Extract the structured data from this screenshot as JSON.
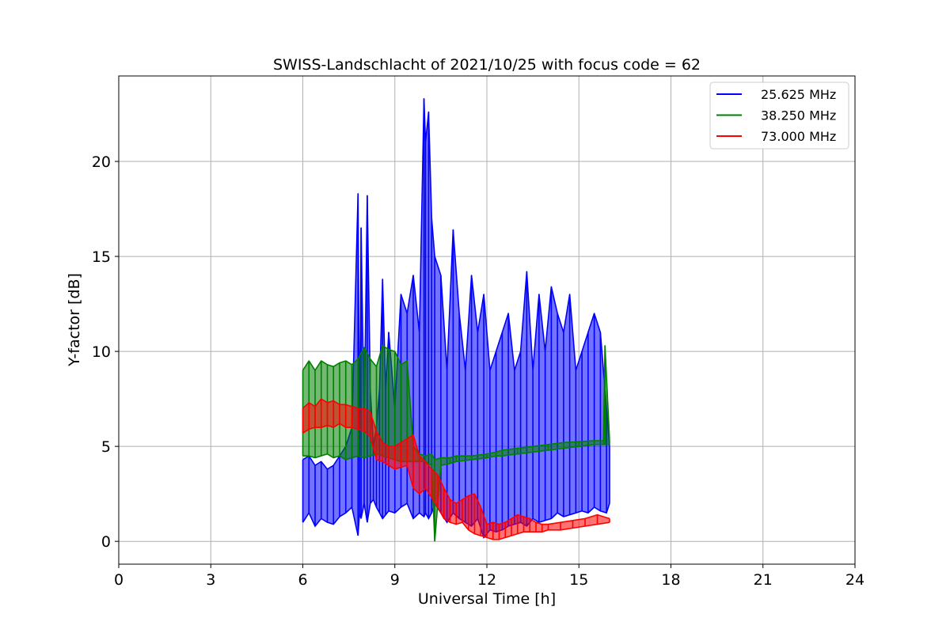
{
  "chart_data": {
    "type": "line",
    "title": "SWISS-Landschlacht of 2021/10/25 with focus code = 62",
    "xlabel": "Universal Time [h]",
    "ylabel": "Y-factor [dB]",
    "xlim": [
      0,
      24
    ],
    "ylim": [
      -1.2,
      24.5
    ],
    "xticks": [
      0,
      3,
      6,
      9,
      12,
      15,
      18,
      21,
      24
    ],
    "yticks": [
      0,
      5,
      10,
      15,
      20
    ],
    "grid": true,
    "legend_position": "top-right",
    "series": [
      {
        "name": "25.625 MHz",
        "color": "#0000ff",
        "x": [
          6.0,
          6.2,
          6.4,
          6.6,
          6.8,
          7.0,
          7.2,
          7.4,
          7.6,
          7.8,
          7.85,
          7.9,
          8.0,
          8.1,
          8.2,
          8.3,
          8.4,
          8.5,
          8.6,
          8.7,
          8.8,
          9.0,
          9.2,
          9.4,
          9.6,
          9.8,
          9.95,
          10.0,
          10.1,
          10.2,
          10.3,
          10.5,
          10.7,
          10.9,
          11.1,
          11.3,
          11.5,
          11.7,
          11.9,
          12.1,
          12.3,
          12.5,
          12.7,
          12.9,
          13.1,
          13.3,
          13.5,
          13.7,
          13.9,
          14.1,
          14.3,
          14.5,
          14.7,
          14.9,
          15.1,
          15.3,
          15.5,
          15.7,
          15.9,
          16.0
        ],
        "y": [
          4.3,
          4.5,
          4.0,
          4.2,
          3.8,
          4.0,
          4.5,
          5.0,
          6.0,
          18.3,
          4.0,
          16.5,
          6.0,
          18.2,
          8.0,
          5.0,
          6.0,
          8.0,
          13.8,
          8.0,
          11.0,
          7.0,
          13.0,
          12.0,
          14.0,
          11.0,
          23.3,
          21.0,
          22.6,
          17.0,
          15.0,
          14.0,
          9.0,
          16.4,
          12.0,
          9.0,
          14.0,
          11.0,
          13.0,
          9.0,
          10.0,
          11.0,
          12.0,
          9.0,
          10.0,
          14.2,
          9.0,
          13.0,
          10.0,
          13.4,
          12.0,
          11.0,
          13.0,
          9.0,
          10.0,
          11.0,
          12.0,
          11.0,
          7.0,
          5.0
        ],
        "band_low": [
          1.0,
          1.5,
          0.8,
          1.2,
          1.0,
          0.9,
          1.3,
          1.5,
          1.8,
          0.3,
          1.5,
          1.2,
          2.0,
          1.0,
          2.0,
          2.2,
          1.8,
          1.5,
          1.2,
          1.4,
          1.6,
          1.5,
          1.8,
          2.0,
          1.2,
          1.5,
          1.3,
          1.5,
          1.2,
          1.5,
          2.0,
          1.5,
          1.0,
          1.5,
          1.2,
          1.0,
          0.8,
          1.2,
          0.2,
          0.6,
          0.5,
          0.6,
          0.8,
          0.9,
          1.0,
          0.8,
          1.2,
          1.0,
          1.1,
          1.2,
          1.5,
          1.3,
          1.4,
          1.5,
          1.6,
          1.5,
          1.8,
          1.6,
          1.5,
          2.0
        ]
      },
      {
        "name": "38.250 MHz",
        "color": "#008000",
        "x": [
          6.0,
          6.2,
          6.4,
          6.6,
          6.8,
          7.0,
          7.2,
          7.4,
          7.6,
          7.8,
          8.0,
          8.2,
          8.4,
          8.6,
          8.8,
          9.0,
          9.2,
          9.4,
          9.6,
          9.8,
          10.0,
          10.2,
          10.3,
          10.5,
          10.8,
          11.0,
          11.5,
          12.0,
          12.3,
          12.5,
          13.0,
          13.5,
          14.0,
          14.5,
          15.0,
          15.5,
          15.8,
          15.85,
          16.0
        ],
        "y": [
          9.0,
          9.5,
          9.0,
          9.5,
          9.3,
          9.2,
          9.4,
          9.5,
          9.3,
          9.6,
          10.2,
          9.6,
          9.2,
          10.3,
          10.1,
          10.0,
          9.3,
          9.5,
          5.0,
          4.6,
          4.5,
          4.6,
          4.3,
          4.4,
          4.4,
          4.5,
          4.5,
          4.6,
          4.7,
          4.8,
          4.9,
          5.0,
          5.1,
          5.2,
          5.25,
          5.3,
          5.3,
          10.3,
          5.3
        ],
        "band_low": [
          4.5,
          4.5,
          4.4,
          4.5,
          4.6,
          4.4,
          4.5,
          4.3,
          4.4,
          4.5,
          4.4,
          4.5,
          4.6,
          4.5,
          4.4,
          4.3,
          4.2,
          4.2,
          4.2,
          4.2,
          4.2,
          4.0,
          0.0,
          4.0,
          4.1,
          4.2,
          4.3,
          4.4,
          4.5,
          4.5,
          4.6,
          4.7,
          4.8,
          4.9,
          5.0,
          5.1,
          5.1,
          5.1,
          5.1
        ]
      },
      {
        "name": "73.000 MHz",
        "color": "#ff0000",
        "x": [
          6.0,
          6.2,
          6.4,
          6.6,
          6.8,
          7.0,
          7.2,
          7.4,
          7.6,
          7.8,
          8.0,
          8.2,
          8.4,
          8.6,
          8.8,
          9.0,
          9.2,
          9.4,
          9.6,
          9.8,
          10.0,
          10.2,
          10.4,
          10.6,
          10.8,
          11.0,
          11.2,
          11.4,
          11.6,
          11.8,
          12.0,
          12.2,
          12.4,
          12.6,
          12.8,
          13.0,
          13.2,
          13.4,
          13.6,
          13.8,
          14.0,
          14.4,
          14.8,
          15.2,
          15.6,
          16.0
        ],
        "y": [
          7.0,
          7.3,
          7.1,
          7.5,
          7.3,
          7.4,
          7.2,
          7.2,
          7.1,
          7.0,
          7.0,
          6.8,
          5.8,
          5.2,
          5.0,
          5.0,
          5.2,
          5.4,
          5.6,
          4.5,
          4.2,
          3.8,
          3.5,
          2.8,
          2.2,
          2.0,
          2.2,
          2.4,
          2.5,
          1.8,
          0.9,
          1.0,
          0.9,
          1.0,
          1.2,
          1.4,
          1.3,
          1.2,
          1.0,
          0.9,
          0.9,
          1.0,
          1.1,
          1.2,
          1.4,
          1.2
        ],
        "band_low": [
          5.7,
          5.9,
          6.0,
          6.0,
          6.1,
          6.0,
          6.2,
          6.0,
          6.0,
          5.9,
          5.8,
          5.5,
          4.3,
          4.2,
          4.0,
          3.8,
          3.9,
          4.0,
          2.8,
          2.5,
          2.8,
          2.3,
          1.8,
          1.2,
          1.0,
          0.9,
          1.0,
          0.6,
          0.4,
          0.3,
          0.2,
          0.1,
          0.1,
          0.2,
          0.3,
          0.4,
          0.5,
          0.5,
          0.5,
          0.5,
          0.6,
          0.6,
          0.7,
          0.8,
          0.9,
          1.0
        ]
      }
    ]
  }
}
